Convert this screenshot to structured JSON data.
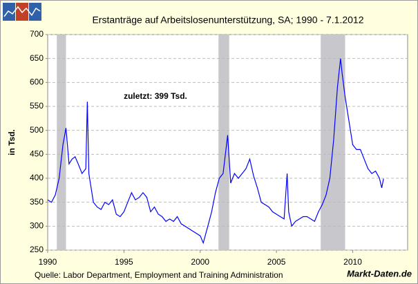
{
  "chart_data": {
    "type": "line",
    "title": "Erstanträge auf Arbeitslosenunterstützung, SA;  1990 - 7.1.2012",
    "y_label": "in Tsd.",
    "annotation": "zuletzt: 399 Tsd.",
    "source": "Quelle: Labor Department, Employment and Training Administration",
    "brand": "Markt-Daten.de",
    "color": "#0000ff",
    "recession_color": "#c8c8cc",
    "grid": true,
    "xlim": [
      1990,
      2013.6
    ],
    "xticks": [
      1990,
      1995,
      2000,
      2005,
      2010
    ],
    "ylim": [
      250,
      700
    ],
    "yticks": [
      250,
      300,
      350,
      400,
      450,
      500,
      550,
      600,
      650,
      700
    ],
    "recessions": [
      [
        1990.6,
        1991.2
      ],
      [
        2001.2,
        2001.9
      ],
      [
        2007.9,
        2009.5
      ]
    ],
    "x": [
      1990.0,
      1990.25,
      1990.5,
      1990.75,
      1991.0,
      1991.2,
      1991.4,
      1991.6,
      1991.8,
      1992.0,
      1992.25,
      1992.5,
      1992.6,
      1992.7,
      1993.0,
      1993.25,
      1993.5,
      1993.75,
      1994.0,
      1994.25,
      1994.5,
      1994.75,
      1995.0,
      1995.25,
      1995.5,
      1995.75,
      1996.0,
      1996.25,
      1996.5,
      1996.75,
      1997.0,
      1997.25,
      1997.5,
      1997.75,
      1998.0,
      1998.25,
      1998.5,
      1998.75,
      1999.0,
      1999.25,
      1999.5,
      1999.75,
      2000.0,
      2000.2,
      2000.5,
      2000.75,
      2001.0,
      2001.25,
      2001.5,
      2001.8,
      2001.9,
      2002.0,
      2002.25,
      2002.5,
      2002.75,
      2003.0,
      2003.25,
      2003.5,
      2003.75,
      2004.0,
      2004.25,
      2004.5,
      2004.75,
      2005.0,
      2005.25,
      2005.5,
      2005.7,
      2005.8,
      2006.0,
      2006.25,
      2006.5,
      2006.75,
      2007.0,
      2007.25,
      2007.5,
      2007.75,
      2008.0,
      2008.25,
      2008.5,
      2008.75,
      2009.0,
      2009.2,
      2009.3,
      2009.5,
      2009.75,
      2010.0,
      2010.25,
      2010.5,
      2010.75,
      2011.0,
      2011.25,
      2011.5,
      2011.75,
      2011.9,
      2012.02
    ],
    "values": [
      355,
      350,
      365,
      400,
      470,
      505,
      430,
      440,
      445,
      430,
      410,
      420,
      560,
      410,
      350,
      340,
      335,
      350,
      345,
      355,
      325,
      320,
      330,
      350,
      370,
      355,
      360,
      370,
      360,
      330,
      340,
      325,
      320,
      310,
      315,
      310,
      320,
      305,
      300,
      295,
      290,
      285,
      280,
      265,
      300,
      330,
      370,
      400,
      410,
      490,
      440,
      390,
      410,
      400,
      410,
      420,
      440,
      405,
      380,
      350,
      345,
      340,
      330,
      325,
      320,
      315,
      410,
      330,
      300,
      310,
      315,
      320,
      320,
      315,
      310,
      330,
      345,
      365,
      400,
      480,
      590,
      650,
      620,
      570,
      520,
      470,
      460,
      460,
      440,
      420,
      410,
      415,
      400,
      380,
      399
    ]
  }
}
